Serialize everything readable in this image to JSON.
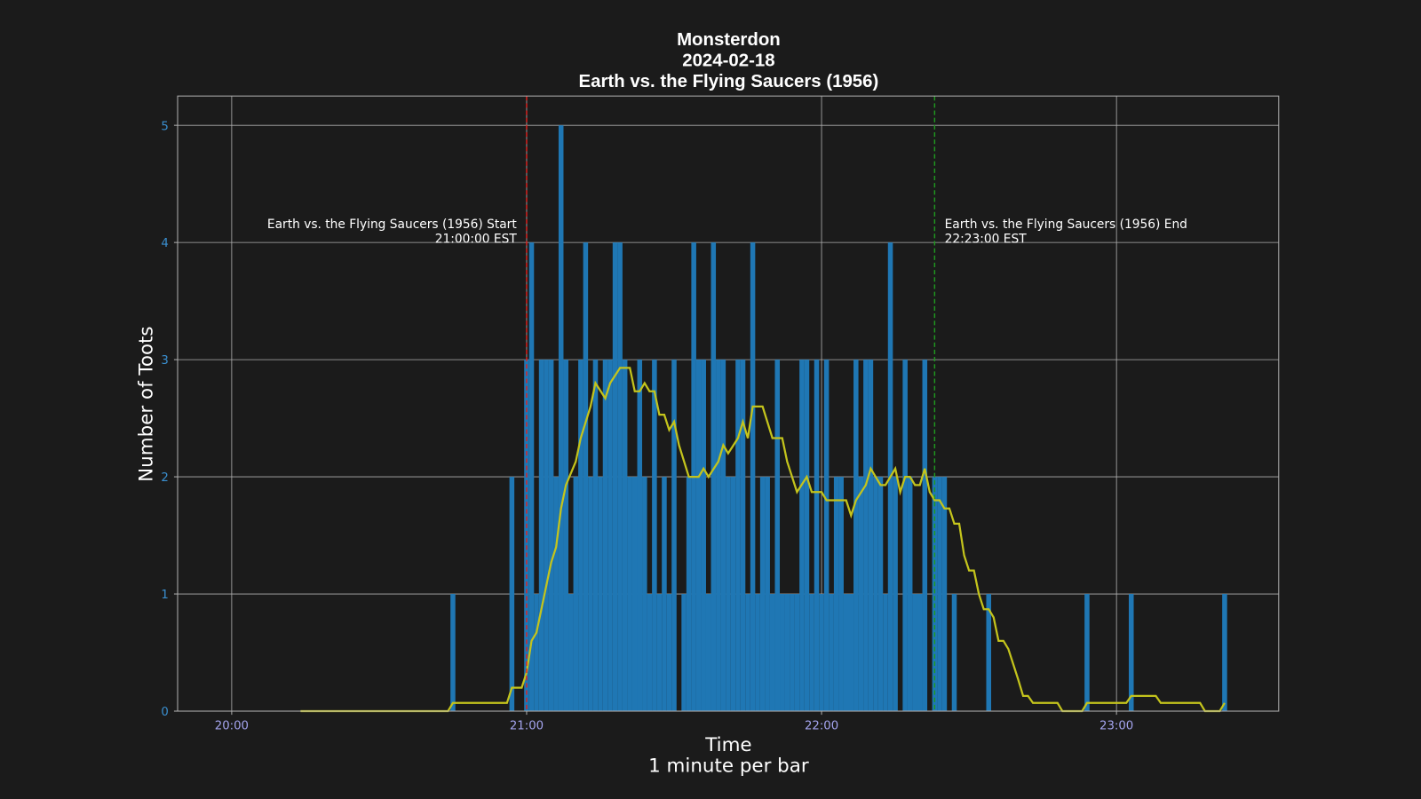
{
  "chart_data": {
    "type": "bar",
    "title": [
      "Monsterdon",
      "2024-02-18",
      "Earth vs. the Flying Saucers (1956)"
    ],
    "xlabel": [
      "Time",
      "1 minute per bar"
    ],
    "ylabel": "Number of Toots",
    "xlim": [
      "19:49",
      "23:33"
    ],
    "xticks": [
      "20:00",
      "21:00",
      "22:00",
      "23:00"
    ],
    "ylim": [
      0,
      5.25
    ],
    "yticks": [
      0,
      1,
      2,
      3,
      4,
      5
    ],
    "grid": true,
    "series": [
      {
        "type": "bar",
        "color": "#1f77b4",
        "x": [
          "20:45",
          "20:57",
          "21:00",
          "21:01",
          "21:02",
          "21:03",
          "21:04",
          "21:05",
          "21:06",
          "21:07",
          "21:08",
          "21:09",
          "21:10",
          "21:11",
          "21:12",
          "21:13",
          "21:14",
          "21:15",
          "21:16",
          "21:17",
          "21:18",
          "21:19",
          "21:20",
          "21:21",
          "21:22",
          "21:23",
          "21:24",
          "21:25",
          "21:26",
          "21:27",
          "21:28",
          "21:29",
          "21:30",
          "21:32",
          "21:33",
          "21:34",
          "21:35",
          "21:36",
          "21:37",
          "21:38",
          "21:39",
          "21:40",
          "21:41",
          "21:42",
          "21:43",
          "21:44",
          "21:45",
          "21:46",
          "21:47",
          "21:48",
          "21:49",
          "21:50",
          "21:51",
          "21:52",
          "21:53",
          "21:54",
          "21:55",
          "21:56",
          "21:57",
          "21:58",
          "21:59",
          "22:00",
          "22:01",
          "22:02",
          "22:03",
          "22:04",
          "22:05",
          "22:06",
          "22:07",
          "22:08",
          "22:09",
          "22:10",
          "22:11",
          "22:12",
          "22:13",
          "22:14",
          "22:15",
          "22:17",
          "22:18",
          "22:19",
          "22:20",
          "22:21",
          "22:23",
          "22:24",
          "22:25",
          "22:27",
          "22:34",
          "22:54",
          "23:03",
          "23:22"
        ],
        "values": [
          1,
          2,
          3,
          4,
          1,
          3,
          3,
          3,
          2,
          5,
          3,
          1,
          2,
          3,
          4,
          2,
          3,
          2,
          3,
          3,
          4,
          4,
          3,
          2,
          2,
          3,
          2,
          1,
          3,
          1,
          2,
          1,
          3,
          1,
          2,
          4,
          3,
          3,
          1,
          4,
          3,
          3,
          2,
          2,
          3,
          3,
          1,
          4,
          1,
          2,
          2,
          1,
          3,
          1,
          1,
          1,
          1,
          3,
          3,
          1,
          3,
          1,
          3,
          1,
          2,
          2,
          1,
          1,
          3,
          2,
          3,
          3,
          2,
          2,
          1,
          4,
          2,
          3,
          2,
          1,
          1,
          3,
          2,
          2,
          2,
          1,
          1,
          1,
          1,
          1
        ]
      },
      {
        "type": "line",
        "color": "#c4c41c",
        "x": [
          "20:14",
          "20:44",
          "20:45",
          "20:56",
          "20:57",
          "20:59",
          "21:00",
          "21:01",
          "21:02",
          "21:05",
          "21:06",
          "21:07",
          "21:08",
          "21:10",
          "21:11",
          "21:13",
          "21:14",
          "21:16",
          "21:17",
          "21:19",
          "21:21",
          "21:22",
          "21:23",
          "21:24",
          "21:25",
          "21:26",
          "21:27",
          "21:28",
          "21:29",
          "21:30",
          "21:31",
          "21:33",
          "21:35",
          "21:36",
          "21:37",
          "21:39",
          "21:40",
          "21:41",
          "21:43",
          "21:44",
          "21:45",
          "21:46",
          "21:48",
          "21:50",
          "21:52",
          "21:53",
          "21:55",
          "21:57",
          "21:58",
          "22:00",
          "22:01",
          "22:05",
          "22:06",
          "22:07",
          "22:09",
          "22:10",
          "22:12",
          "22:13",
          "22:15",
          "22:16",
          "22:17",
          "22:18",
          "22:19",
          "22:20",
          "22:21",
          "22:22",
          "22:23",
          "22:24",
          "22:25",
          "22:26",
          "22:27",
          "22:28",
          "22:29",
          "22:30",
          "22:31",
          "22:32",
          "22:33",
          "22:34",
          "22:35",
          "22:36",
          "22:37",
          "22:38",
          "22:40",
          "22:41",
          "22:42",
          "22:43",
          "22:48",
          "22:49",
          "22:53",
          "22:54",
          "23:02",
          "23:03",
          "23:08",
          "23:09",
          "23:17",
          "23:18",
          "23:21",
          "23:22"
        ],
        "values": [
          0,
          0,
          0.07,
          0.07,
          0.2,
          0.2,
          0.33,
          0.6,
          0.67,
          1.27,
          1.4,
          1.73,
          1.93,
          2.13,
          2.33,
          2.6,
          2.8,
          2.67,
          2.8,
          2.93,
          2.93,
          2.73,
          2.73,
          2.8,
          2.73,
          2.73,
          2.53,
          2.53,
          2.4,
          2.47,
          2.27,
          2,
          2,
          2.07,
          2,
          2.13,
          2.27,
          2.2,
          2.33,
          2.47,
          2.33,
          2.6,
          2.6,
          2.33,
          2.33,
          2.13,
          1.87,
          2,
          1.87,
          1.87,
          1.8,
          1.8,
          1.67,
          1.8,
          1.93,
          2.07,
          1.93,
          1.93,
          2.07,
          1.87,
          2,
          2,
          1.93,
          1.93,
          2.07,
          1.87,
          1.8,
          1.8,
          1.73,
          1.73,
          1.6,
          1.6,
          1.33,
          1.2,
          1.2,
          1,
          0.87,
          0.87,
          0.8,
          0.6,
          0.6,
          0.53,
          0.27,
          0.13,
          0.13,
          0.07,
          0.07,
          0,
          0,
          0.07,
          0.07,
          0.13,
          0.13,
          0.07,
          0.07,
          0,
          0,
          0.07
        ]
      }
    ],
    "annotations": [
      {
        "x": "21:00",
        "color": "#e0201e",
        "side": "left",
        "text": [
          "Earth vs. the Flying Saucers (1956) Start",
          "21:00:00 EST"
        ]
      },
      {
        "x": "22:23",
        "color": "#1f9a1f",
        "side": "right",
        "text": [
          "Earth vs. the Flying Saucers (1956) End",
          "22:23:00 EST"
        ]
      }
    ]
  }
}
